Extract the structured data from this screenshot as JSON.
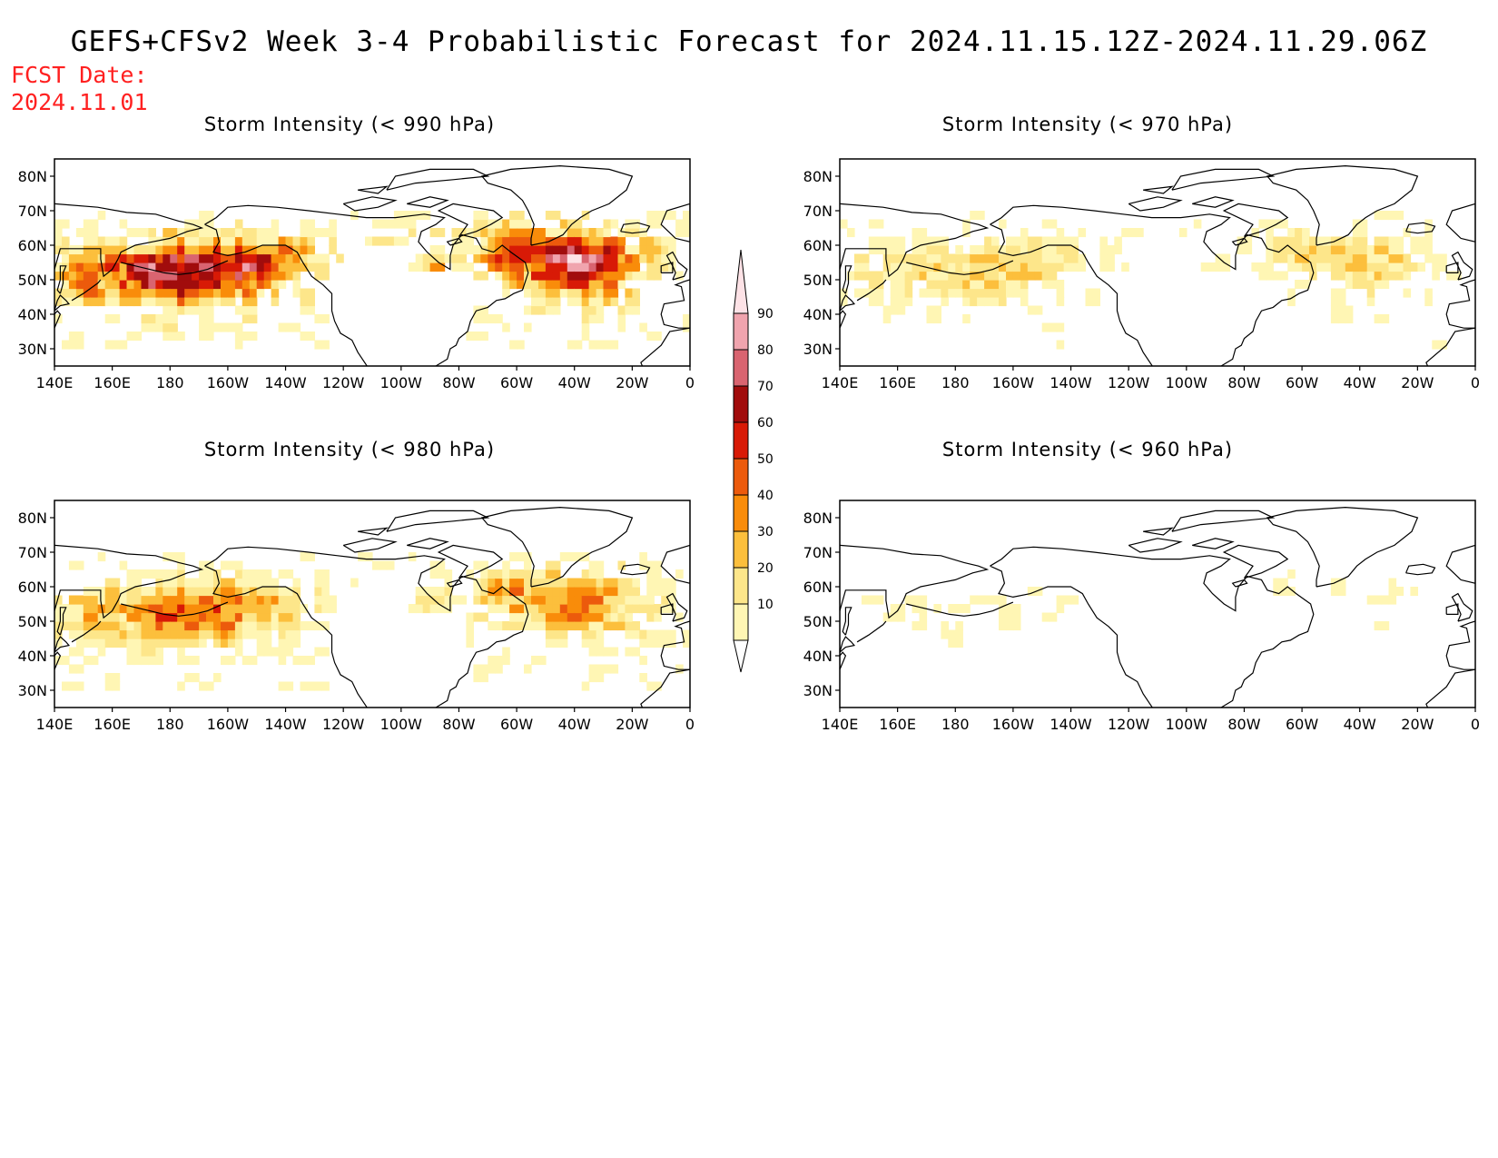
{
  "title": "GEFS+CFSv2 Week 3-4 Probabilistic Forecast for 2024.11.15.12Z-2024.11.29.06Z",
  "fcst_date_label": "FCST Date:",
  "fcst_date": "2024.11.01",
  "colors": {
    "title_red": "#ff2020",
    "scale": [
      "#fff6b4",
      "#fde68a",
      "#fcbf3c",
      "#f98c0a",
      "#ec5a0c",
      "#d81a06",
      "#a10c0c",
      "#d96470",
      "#f0a4ae",
      "#fde2e6"
    ]
  },
  "colorbar": {
    "levels": [
      "10",
      "20",
      "30",
      "40",
      "50",
      "60",
      "70",
      "80",
      "90"
    ]
  },
  "map": {
    "lat_labels": [
      "80N",
      "70N",
      "60N",
      "50N",
      "40N",
      "30N"
    ],
    "lon_labels": [
      "140E",
      "160E",
      "180",
      "160W",
      "140W",
      "120W",
      "100W",
      "80W",
      "60W",
      "40W",
      "20W",
      "0"
    ],
    "domain": {
      "lon_start_east": 140,
      "lon_end_east": 360,
      "lat_min": 25,
      "lat_max": 85
    }
  },
  "panels": [
    {
      "id": "p990",
      "title": "Storm Intensity (< 990 hPa)",
      "intensity": 1.0
    },
    {
      "id": "p970",
      "title": "Storm Intensity (< 970 hPa)",
      "intensity": 0.35
    },
    {
      "id": "p980",
      "title": "Storm Intensity (< 980 hPa)",
      "intensity": 0.62
    },
    {
      "id": "p960",
      "title": "Storm Intensity (< 960 hPa)",
      "intensity": 0.12
    }
  ]
}
